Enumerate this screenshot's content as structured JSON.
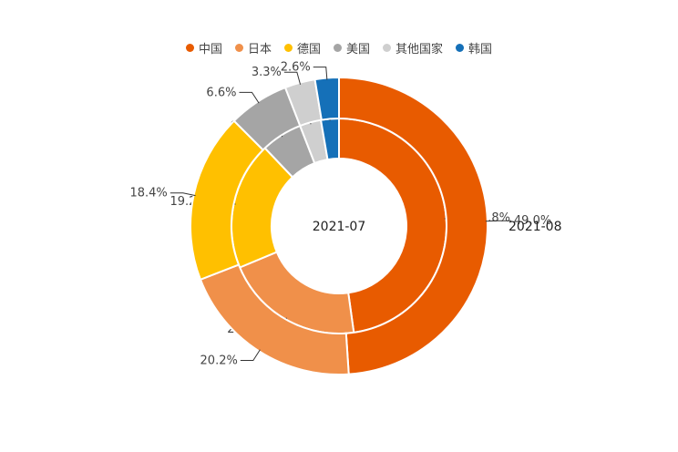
{
  "chart_data": {
    "type": "pie",
    "legend_position": "top",
    "categories": [
      "中国",
      "日本",
      "德国",
      "美国",
      "其他国家",
      "韩国"
    ],
    "colors": [
      "#e85b00",
      "#f0904a",
      "#ffc000",
      "#a5a5a5",
      "#cfcfcf",
      "#1570b8"
    ],
    "series": [
      {
        "name": "2021-07",
        "ring": "inner",
        "values": [
          47.8,
          20.9,
          19.2,
          6.2,
          3.2,
          2.7
        ],
        "labels": [
          "47.8%",
          "20.9%",
          "19.2%",
          "6.2%",
          "3.2%",
          "2.7%"
        ]
      },
      {
        "name": "2021-08",
        "ring": "outer",
        "values": [
          49.0,
          20.2,
          18.4,
          6.6,
          3.3,
          2.6
        ],
        "labels": [
          "49.0%",
          "20.2%",
          "18.4%",
          "6.6%",
          "3.3%",
          "2.6%"
        ]
      }
    ]
  }
}
